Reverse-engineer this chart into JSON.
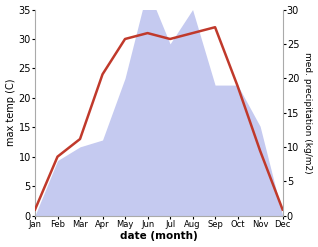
{
  "months": [
    "Jan",
    "Feb",
    "Mar",
    "Apr",
    "May",
    "Jun",
    "Jul",
    "Aug",
    "Sep",
    "Oct",
    "Nov",
    "Dec"
  ],
  "temperature": [
    1,
    10,
    13,
    24,
    30,
    31,
    30,
    31,
    32,
    22,
    11,
    1
  ],
  "precipitation": [
    0,
    8,
    10,
    11,
    20,
    33,
    25,
    30,
    19,
    19,
    13,
    0
  ],
  "temp_color": "#c0392b",
  "precip_fill_color": "#c5caf0",
  "temp_ylim": [
    0,
    35
  ],
  "temp_yticks": [
    0,
    5,
    10,
    15,
    20,
    25,
    30,
    35
  ],
  "precip_ylim": [
    0,
    30
  ],
  "precip_yticks": [
    0,
    5,
    10,
    15,
    20,
    25,
    30
  ],
  "xlabel": "date (month)",
  "ylabel_left": "max temp (C)",
  "ylabel_right": "med. precipitation (kg/m2)",
  "bg_color": "#ffffff",
  "line_width": 1.8,
  "temp_scale_max": 35,
  "precip_scale_max": 30
}
